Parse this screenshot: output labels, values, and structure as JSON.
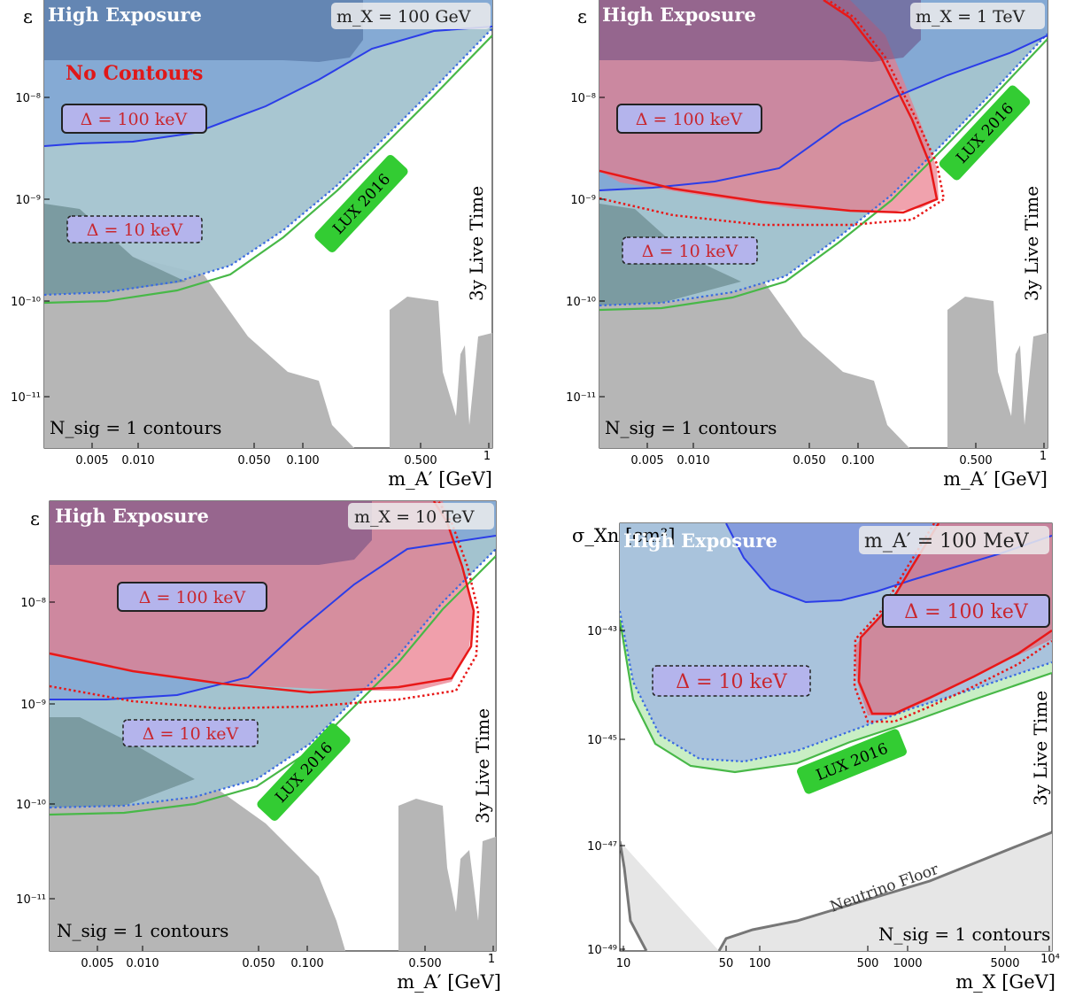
{
  "chart_data": [
    {
      "type": "area",
      "panel": "top-left",
      "header": "High Exposure",
      "mass_label": "m_X = 100 GeV",
      "annotation": "No Contours",
      "xlabel": "m_A′ [GeV]",
      "ylabel": "ε",
      "xscale": "log",
      "yscale": "log",
      "xlim": [
        0.0025,
        1
      ],
      "ylim": [
        3e-12,
        1e-07
      ],
      "x_tick_labels": [
        "0.005",
        "0.010",
        "0.050",
        "0.100",
        "0.500",
        "1"
      ],
      "y_tick_labels": [
        "10⁻¹¹",
        "10⁻¹⁰",
        "10⁻⁹",
        "10⁻⁸"
      ],
      "labels": [
        "Δ = 100 keV",
        "Δ = 10 keV",
        "LUX 2016",
        "3y Live Time",
        "N_sig = 1 contours"
      ],
      "series": [
        {
          "name": "LUX 2016",
          "points": [
            [
              0.0025,
              9e-11
            ],
            [
              0.005,
              9e-11
            ],
            [
              0.01,
              1e-10
            ],
            [
              0.03,
              1.6e-10
            ],
            [
              0.1,
              4e-10
            ],
            [
              0.3,
              2e-09
            ],
            [
              1,
              3e-08
            ]
          ]
        },
        {
          "name": "Δ = 10 keV",
          "points": [
            [
              0.0025,
              1.1e-10
            ],
            [
              0.005,
              1.1e-10
            ],
            [
              0.01,
              1.2e-10
            ],
            [
              0.03,
              1.8e-10
            ],
            [
              0.1,
              4.5e-10
            ],
            [
              0.3,
              2.3e-09
            ],
            [
              1,
              3.5e-08
            ]
          ]
        },
        {
          "name": "Δ = 100 keV",
          "points": [
            [
              0.0025,
              3.5e-09
            ],
            [
              0.005,
              3.5e-09
            ],
            [
              0.01,
              3.6e-09
            ],
            [
              0.03,
              5e-09
            ],
            [
              0.06,
              1e-08
            ],
            [
              0.1,
              2e-08
            ],
            [
              0.2,
              5e-08
            ],
            [
              0.3,
              8e-08
            ]
          ]
        }
      ]
    },
    {
      "type": "area",
      "panel": "top-right",
      "header": "High Exposure",
      "mass_label": "m_X = 1 TeV",
      "xlabel": "m_A′ [GeV]",
      "ylabel": "ε",
      "xscale": "log",
      "yscale": "log",
      "xlim": [
        0.0025,
        1
      ],
      "ylim": [
        3e-12,
        1e-07
      ],
      "x_tick_labels": [
        "0.005",
        "0.010",
        "0.050",
        "0.100",
        "0.500",
        "1"
      ],
      "y_tick_labels": [
        "10⁻¹¹",
        "10⁻¹⁰",
        "10⁻⁹",
        "10⁻⁸"
      ],
      "labels": [
        "Δ = 100 keV",
        "Δ = 10 keV",
        "LUX 2016",
        "3y Live Time",
        "N_sig = 1 contours"
      ],
      "series": [
        {
          "name": "LUX 2016",
          "points": [
            [
              0.0025,
              9e-11
            ],
            [
              0.005,
              9e-11
            ],
            [
              0.01,
              1e-10
            ],
            [
              0.03,
              1.6e-10
            ],
            [
              0.1,
              4e-10
            ],
            [
              0.3,
              2e-09
            ],
            [
              1,
              3e-08
            ]
          ]
        },
        {
          "name": "Δ = 10 keV",
          "points": [
            [
              0.0025,
              1.1e-10
            ],
            [
              0.005,
              1.1e-10
            ],
            [
              0.01,
              1.2e-10
            ],
            [
              0.03,
              1.8e-10
            ],
            [
              0.1,
              4.5e-10
            ],
            [
              0.3,
              2.3e-09
            ],
            [
              1,
              3.5e-08
            ]
          ]
        },
        {
          "name": "Δ = 100 keV",
          "points": [
            [
              0.0025,
              1.2e-09
            ],
            [
              0.005,
              1.2e-09
            ],
            [
              0.01,
              1.3e-09
            ],
            [
              0.03,
              2e-09
            ],
            [
              0.06,
              4e-09
            ],
            [
              0.1,
              8e-09
            ],
            [
              0.3,
              3e-08
            ],
            [
              1,
              3e-08
            ]
          ]
        }
      ]
    },
    {
      "type": "area",
      "panel": "bottom-left",
      "header": "High Exposure",
      "mass_label": "m_X = 10 TeV",
      "xlabel": "m_A′ [GeV]",
      "ylabel": "ε",
      "xscale": "log",
      "yscale": "log",
      "xlim": [
        0.0025,
        1
      ],
      "ylim": [
        3e-12,
        1e-07
      ],
      "x_tick_labels": [
        "0.005",
        "0.010",
        "0.050",
        "0.100",
        "0.500",
        "1"
      ],
      "y_tick_labels": [
        "10⁻¹¹",
        "10⁻¹⁰",
        "10⁻⁹",
        "10⁻⁸"
      ],
      "labels": [
        "Δ = 100 keV",
        "Δ = 10 keV",
        "LUX 2016",
        "3y Live Time",
        "N_sig = 1 contours"
      ],
      "series": [
        {
          "name": "LUX 2016",
          "points": [
            [
              0.0025,
              9e-11
            ],
            [
              0.005,
              9e-11
            ],
            [
              0.01,
              1e-10
            ],
            [
              0.03,
              1.6e-10
            ],
            [
              0.1,
              4e-10
            ],
            [
              0.3,
              2e-09
            ],
            [
              1,
              3e-08
            ]
          ]
        },
        {
          "name": "Δ = 10 keV",
          "points": [
            [
              0.0025,
              1.1e-10
            ],
            [
              0.005,
              1.1e-10
            ],
            [
              0.01,
              1.2e-10
            ],
            [
              0.03,
              1.8e-10
            ],
            [
              0.1,
              4.5e-10
            ],
            [
              0.3,
              2.3e-09
            ],
            [
              1,
              3.5e-08
            ]
          ]
        },
        {
          "name": "Δ = 100 keV",
          "points": [
            [
              0.0025,
              1e-09
            ],
            [
              0.005,
              1e-09
            ],
            [
              0.01,
              1.1e-09
            ],
            [
              0.03,
              1.8e-09
            ],
            [
              0.06,
              4e-09
            ],
            [
              0.1,
              8e-09
            ],
            [
              0.3,
              3e-08
            ],
            [
              1,
              3e-08
            ]
          ]
        }
      ]
    },
    {
      "type": "area",
      "panel": "bottom-right",
      "header": "High Exposure",
      "mass_label": "m_A′ = 100 MeV",
      "xlabel": "m_X [GeV]",
      "ylabel": "σ_Xn [cm²]",
      "xscale": "log",
      "yscale": "log",
      "xlim": [
        8,
        10000
      ],
      "ylim": [
        1e-49,
        1e-41
      ],
      "x_tick_labels": [
        "10",
        "50",
        "100",
        "500",
        "1000",
        "5000",
        "10⁴"
      ],
      "y_tick_labels": [
        "10⁻⁴⁹",
        "10⁻⁴⁷",
        "10⁻⁴⁵",
        "10⁻⁴³"
      ],
      "labels": [
        "Δ = 100 keV",
        "Δ = 10 keV",
        "LUX 2016",
        "3y Live Time",
        "N_sig = 1 contours",
        "Neutrino Floor"
      ],
      "series": [
        {
          "name": "LUX 2016",
          "points": [
            [
              10,
              1e-44
            ],
            [
              20,
              1.2e-45
            ],
            [
              50,
              6e-46
            ],
            [
              100,
              6.5e-46
            ],
            [
              500,
              2.5e-45
            ],
            [
              1000,
              5e-45
            ],
            [
              5000,
              2e-44
            ],
            [
              10000,
              3e-44
            ]
          ]
        },
        {
          "name": "Δ = 10 keV",
          "points": [
            [
              10,
              1.5e-44
            ],
            [
              20,
              8e-46
            ],
            [
              50,
              4e-46
            ],
            [
              100,
              4.5e-46
            ],
            [
              500,
              1.8e-45
            ],
            [
              1000,
              4e-45
            ],
            [
              5000,
              2e-44
            ],
            [
              10000,
              4e-44
            ]
          ]
        },
        {
          "name": "Neutrino Floor",
          "points": [
            [
              8,
              1e-47
            ],
            [
              10,
              2e-48
            ],
            [
              15,
              1e-49
            ],
            [
              50,
              1e-49
            ],
            [
              100,
              3e-49
            ],
            [
              500,
              1e-48
            ],
            [
              1000,
              2e-48
            ],
            [
              5000,
              8e-48
            ],
            [
              10000,
              1.5e-47
            ]
          ]
        }
      ]
    }
  ]
}
